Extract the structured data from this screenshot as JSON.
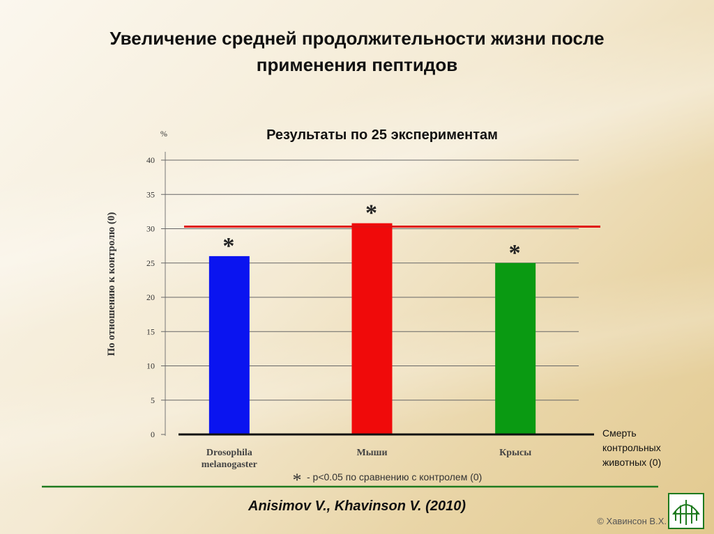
{
  "slide": {
    "title_line1": "Увеличение средней продолжительности жизни после",
    "title_line2": "применения пептидов",
    "citation": "Anisimov V., Khavinson V. (2010)",
    "copyright": "© Хавинсон В.Х."
  },
  "chart_data": {
    "type": "bar",
    "title": "Результаты по 25 экспериментам",
    "ylabel": "По отношению к контролю (0)",
    "y_unit": "%",
    "ylim": [
      0,
      40
    ],
    "yticks": [
      0,
      5,
      10,
      15,
      20,
      25,
      30,
      35,
      40
    ],
    "grid": true,
    "categories": [
      "Drosophila melanogaster",
      "Мыши",
      "Крысы"
    ],
    "values": [
      26,
      30.8,
      25
    ],
    "colors": [
      "#0a14f0",
      "#f00a0a",
      "#0a9a12"
    ],
    "significance_marks": [
      "*",
      "*",
      "*"
    ],
    "reference_line": {
      "value": 30.3,
      "color": "#e01010"
    },
    "baseline_label": [
      "Смерть",
      "контрольных",
      "животных (0)"
    ],
    "footnote_symbol": "*",
    "footnote": "- p<0.05 по сравнению с контролем (0)"
  }
}
